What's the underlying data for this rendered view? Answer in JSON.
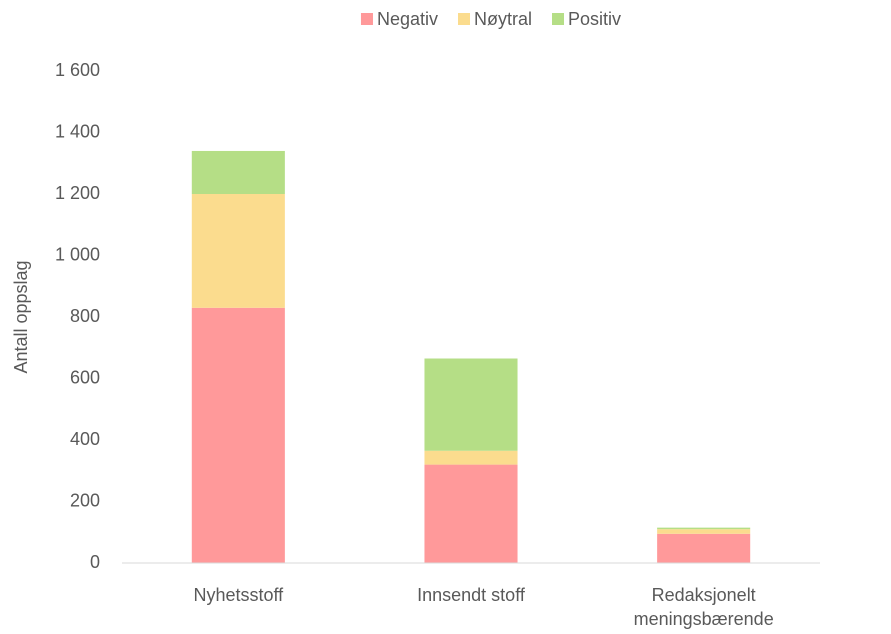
{
  "chart_data": {
    "type": "stacked_bar",
    "categories": [
      "Nyhetsstoff",
      "Innsendt stoff",
      "Redaksjonelt meningsbærende"
    ],
    "series": [
      {
        "name": "Negativ",
        "color": "#ff999a",
        "values": [
          830,
          320,
          95
        ]
      },
      {
        "name": "Nøytral",
        "color": "#fbdc8e",
        "values": [
          370,
          45,
          15
        ]
      },
      {
        "name": "Positiv",
        "color": "#b5de86",
        "values": [
          140,
          300,
          5
        ]
      }
    ],
    "y_label": "Antall oppslag",
    "ylim": [
      0,
      1600
    ],
    "yticks": [
      0,
      200,
      400,
      600,
      800,
      {
        "value": 1000,
        "label": "1 000"
      },
      {
        "value": 1200,
        "label": "1 200"
      },
      {
        "value": 1400,
        "label": "1 400"
      },
      {
        "value": 1600,
        "label": "1 600"
      }
    ],
    "grid": false,
    "legend": "top"
  }
}
